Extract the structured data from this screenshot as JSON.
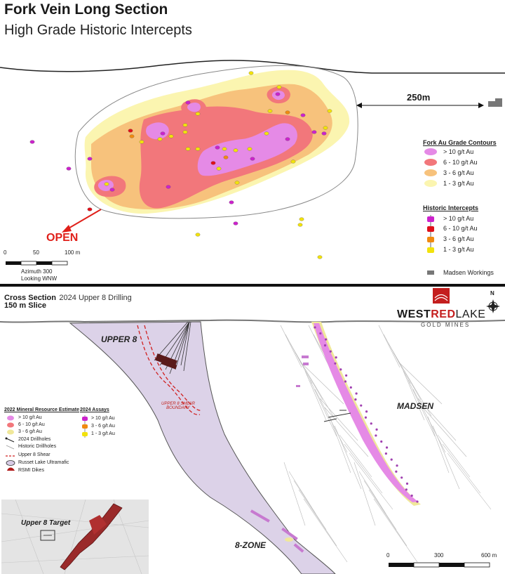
{
  "top_panel": {
    "title": "Fork Vein Long Section",
    "subtitle": "High Grade Historic Intercepts",
    "distance_label": "250m",
    "open_label": "OPEN",
    "scale": {
      "ticks": [
        "0",
        "50",
        "100 m"
      ],
      "azimuth": "Azimuth 300",
      "looking": "Looking WNW"
    },
    "contour_legend": {
      "title": "Fork Au Grade Contours",
      "items": [
        {
          "label": "> 10 g/t Au",
          "color": "#e58ae6"
        },
        {
          "label": "6 - 10 g/t Au",
          "color": "#f2777b"
        },
        {
          "label": "3 - 6 g/t Au",
          "color": "#f7c27c"
        },
        {
          "label": "1 - 3 g/t Au",
          "color": "#fbf5b0"
        }
      ]
    },
    "intercept_legend": {
      "title": "Historic Intercepts",
      "items": [
        {
          "label": "> 10 g/t Au",
          "color": "#cc22cc"
        },
        {
          "label": "6 - 10 g/t Au",
          "color": "#e0101a"
        },
        {
          "label": "3 - 6 g/t Au",
          "color": "#f08a10"
        },
        {
          "label": "1 - 3 g/t Au",
          "color": "#f2e20c"
        }
      ]
    },
    "workings_label": "Madsen Workings"
  },
  "bottom_panel": {
    "title_bold": "Cross Section",
    "title_rest": "2024 Upper 8 Drilling",
    "slice": "150 m Slice",
    "brand": {
      "name_part1": "WEST",
      "name_part2": "RED",
      "name_part3": "LAKE",
      "tagline": "GOLD MINES"
    },
    "north": "N",
    "zones": {
      "upper8": "UPPER 8",
      "madsen": "MADSEN",
      "zone8": "8-ZONE"
    },
    "shear_label": "UPPER 8 SHEAR BOUNDARY",
    "resource_legend": {
      "title": "2022 Mineral Resource Estimate",
      "items": [
        {
          "label": "> 10 g/t Au",
          "color": "#e58ae6"
        },
        {
          "label": "6 - 10 g/t Au",
          "color": "#f2777b"
        },
        {
          "label": "3 - 6 g/t Au",
          "color": "#f0e89a"
        },
        {
          "label": "2024 Drillholes",
          "color": "#222222"
        },
        {
          "label": "Historic Drillholes",
          "color": "#999999"
        },
        {
          "label": "Upper 8 Shear",
          "color": "#d02020"
        },
        {
          "label": "Russet Lake Ultramafic",
          "color": "#d8cce6"
        },
        {
          "label": "RSMI Dikes",
          "color": "#b01c1c"
        }
      ]
    },
    "assay_legend": {
      "title": "2024 Assays",
      "items": [
        {
          "label": "> 10 g/t Au",
          "color": "#cc22cc"
        },
        {
          "label": "3 - 6 g/t Au",
          "color": "#f08a10"
        },
        {
          "label": "1 - 3 g/t Au",
          "color": "#f2e20c"
        }
      ]
    },
    "inset_label": "Upper 8 Target",
    "scale": {
      "ticks": [
        "0",
        "300",
        "600 m"
      ]
    }
  }
}
